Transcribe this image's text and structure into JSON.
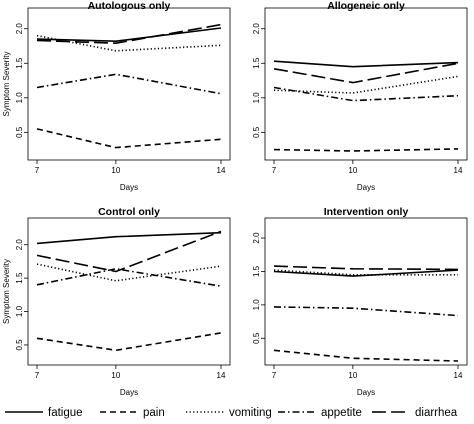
{
  "chart_data": [
    {
      "type": "line",
      "title": "Autologous only",
      "xlabel": "Days",
      "ylabel": "Symptom Severity",
      "x": [
        7,
        10,
        14
      ],
      "xticks": [
        "7",
        "10",
        "14"
      ],
      "yticks": [
        "0.5",
        "1.0",
        "1.5",
        "2.0"
      ],
      "ylim": [
        0.1,
        2.3
      ],
      "series": [
        {
          "name": "fatigue",
          "values": [
            1.85,
            1.82,
            2.01
          ]
        },
        {
          "name": "pain",
          "values": [
            0.55,
            0.28,
            0.4
          ]
        },
        {
          "name": "vomiting",
          "values": [
            1.9,
            1.68,
            1.76
          ]
        },
        {
          "name": "appetite",
          "values": [
            1.15,
            1.34,
            1.06
          ]
        },
        {
          "name": "diarrhea",
          "values": [
            1.83,
            1.79,
            2.06
          ]
        }
      ]
    },
    {
      "type": "line",
      "title": "Allogeneic only",
      "xlabel": "Days",
      "ylabel": "",
      "x": [
        7,
        10,
        14
      ],
      "xticks": [
        "7",
        "10",
        "14"
      ],
      "yticks": [
        "0.5",
        "1.0",
        "1.5",
        "2.0"
      ],
      "ylim": [
        0.1,
        2.3
      ],
      "series": [
        {
          "name": "fatigue",
          "values": [
            1.53,
            1.45,
            1.51
          ]
        },
        {
          "name": "pain",
          "values": [
            0.25,
            0.23,
            0.26
          ]
        },
        {
          "name": "vomiting",
          "values": [
            1.11,
            1.07,
            1.31
          ]
        },
        {
          "name": "appetite",
          "values": [
            1.15,
            0.96,
            1.03
          ]
        },
        {
          "name": "diarrhea",
          "values": [
            1.42,
            1.22,
            1.5
          ]
        }
      ]
    },
    {
      "type": "line",
      "title": "Control only",
      "xlabel": "Days",
      "ylabel": "Symptom Severity",
      "x": [
        7,
        10,
        14
      ],
      "xticks": [
        "7",
        "10",
        "14"
      ],
      "yticks": [
        "0.5",
        "1.0",
        "1.5",
        "2.0"
      ],
      "ylim": [
        0.2,
        2.4
      ],
      "series": [
        {
          "name": "fatigue",
          "values": [
            2.02,
            2.12,
            2.18
          ]
        },
        {
          "name": "pain",
          "values": [
            0.6,
            0.42,
            0.68
          ]
        },
        {
          "name": "vomiting",
          "values": [
            1.71,
            1.46,
            1.68
          ]
        },
        {
          "name": "appetite",
          "values": [
            1.4,
            1.64,
            1.38
          ]
        },
        {
          "name": "diarrhea",
          "values": [
            1.84,
            1.6,
            2.2
          ]
        }
      ]
    },
    {
      "type": "line",
      "title": "Intervention only",
      "xlabel": "Days",
      "ylabel": "",
      "x": [
        7,
        10,
        14
      ],
      "xticks": [
        "7",
        "10",
        "14"
      ],
      "yticks": [
        "0.5",
        "1.0",
        "1.5",
        "2.0"
      ],
      "ylim": [
        0.1,
        2.3
      ],
      "series": [
        {
          "name": "fatigue",
          "values": [
            1.5,
            1.43,
            1.52
          ]
        },
        {
          "name": "pain",
          "values": [
            0.32,
            0.2,
            0.16
          ]
        },
        {
          "name": "vomiting",
          "values": [
            1.52,
            1.45,
            1.45
          ]
        },
        {
          "name": "appetite",
          "values": [
            0.97,
            0.95,
            0.84
          ]
        },
        {
          "name": "diarrhea",
          "values": [
            1.58,
            1.54,
            1.53
          ]
        }
      ]
    }
  ],
  "legend": {
    "placement": "bottom",
    "items": [
      {
        "name": "fatigue",
        "dash": "solid"
      },
      {
        "name": "pain",
        "dash": "dashed"
      },
      {
        "name": "vomiting",
        "dash": "dotted"
      },
      {
        "name": "appetite",
        "dash": "dash-dot"
      },
      {
        "name": "diarrhea",
        "dash": "long-dash"
      }
    ]
  }
}
